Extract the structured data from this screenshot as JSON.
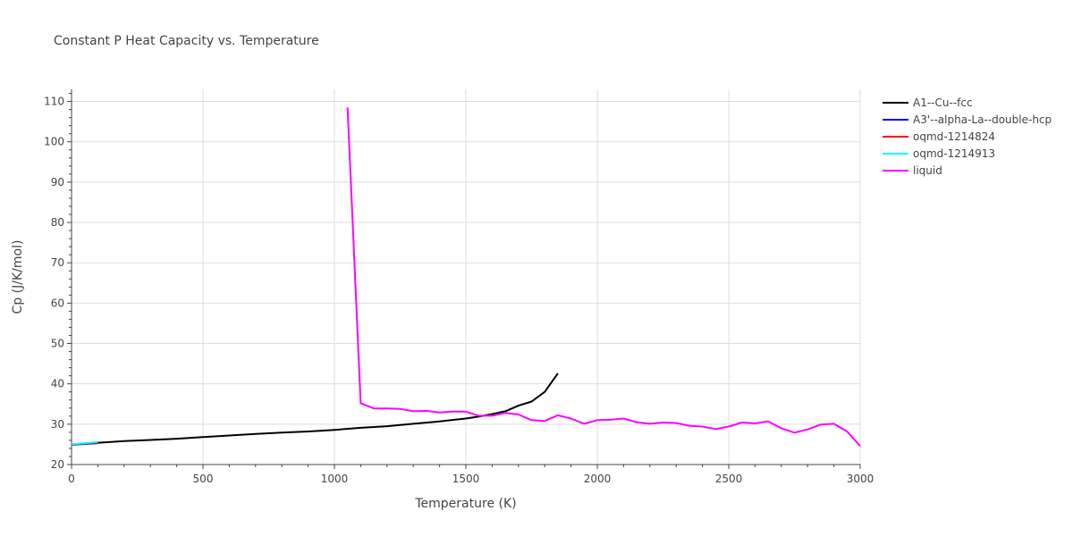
{
  "chart_data": {
    "type": "line",
    "title": "Constant P Heat Capacity vs. Temperature",
    "xlabel": "Temperature (K)",
    "ylabel": "Cp (J/K/mol)",
    "xlim": [
      0,
      3000
    ],
    "ylim": [
      20,
      113
    ],
    "xticks": [
      0,
      500,
      1000,
      1500,
      2000,
      2500,
      3000
    ],
    "xtick_labels": [
      "0",
      "500",
      "1000",
      "1500",
      "2000",
      "2500",
      "3000"
    ],
    "yticks": [
      20,
      30,
      40,
      50,
      60,
      70,
      80,
      90,
      100,
      110
    ],
    "ytick_labels": [
      "20",
      "30",
      "40",
      "50",
      "60",
      "70",
      "80",
      "90",
      "100",
      "110"
    ],
    "grid": true,
    "legend_position": "right",
    "series": [
      {
        "name": "A1--Cu--fcc",
        "color": "#000000",
        "x": [
          0,
          50,
          100,
          150,
          200,
          300,
          400,
          500,
          600,
          700,
          800,
          900,
          1000,
          1100,
          1200,
          1300,
          1400,
          1500,
          1550,
          1600,
          1650,
          1700,
          1750,
          1800,
          1850
        ],
        "y": [
          24.9,
          25.2,
          25.4,
          25.6,
          25.8,
          26.1,
          26.4,
          26.8,
          27.2,
          27.6,
          27.9,
          28.2,
          28.6,
          29.1,
          29.5,
          30.1,
          30.7,
          31.4,
          31.9,
          32.5,
          33.2,
          34.6,
          35.6,
          38.0,
          42.6
        ]
      },
      {
        "name": "A3'--alpha-La--double-hcp",
        "color": "#0000ff",
        "x": [
          0,
          50,
          100
        ],
        "y": [
          24.9,
          25.1,
          25.3
        ]
      },
      {
        "name": "oqmd-1214824",
        "color": "#ff0000",
        "x": [
          0,
          50,
          100
        ],
        "y": [
          25.0,
          25.2,
          25.4
        ]
      },
      {
        "name": "oqmd-1214913",
        "color": "#00ffff",
        "x": [
          0,
          50,
          100
        ],
        "y": [
          25.0,
          25.3,
          25.6
        ]
      },
      {
        "name": "liquid",
        "color": "#ff00ff",
        "x": [
          1050,
          1100,
          1150,
          1200,
          1250,
          1300,
          1350,
          1400,
          1450,
          1500,
          1550,
          1600,
          1650,
          1700,
          1750,
          1800,
          1850,
          1900,
          1950,
          2000,
          2050,
          2100,
          2150,
          2200,
          2250,
          2300,
          2350,
          2400,
          2450,
          2500,
          2550,
          2600,
          2650,
          2700,
          2750,
          2800,
          2850,
          2900,
          2950,
          3000
        ],
        "y": [
          108.5,
          35.2,
          33.9,
          33.9,
          33.8,
          33.2,
          33.3,
          32.9,
          33.1,
          33.1,
          32.1,
          32.1,
          32.8,
          32.4,
          31.0,
          30.8,
          32.2,
          31.4,
          30.1,
          31.0,
          31.1,
          31.4,
          30.5,
          30.1,
          30.4,
          30.3,
          29.6,
          29.4,
          28.8,
          29.4,
          30.4,
          30.2,
          30.7,
          29.0,
          27.9,
          28.7,
          29.9,
          30.1,
          28.2,
          24.6
        ]
      }
    ]
  }
}
